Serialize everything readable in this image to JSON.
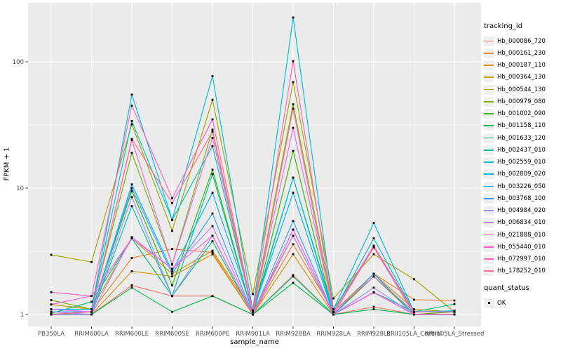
{
  "chart_data": {
    "type": "line",
    "title": "",
    "xlabel": "sample_name",
    "ylabel": "FPKM + 1",
    "y_scale": "log10",
    "y_ticks": [
      1,
      10,
      100
    ],
    "y_minor_ticks": [
      3.162,
      31.62
    ],
    "ylim": [
      0.93,
      290
    ],
    "grid": "on",
    "legend_position": "right",
    "point_marker": {
      "shape": "square",
      "color": "#000000",
      "size": 2.8
    },
    "categories": [
      "PB350LA",
      "RRIM600LA",
      "RRIM600LE",
      "RRIM600SE",
      "RRIM600PE",
      "RRIM901LA",
      "RRIM928BA",
      "RRIM928LA",
      "RRIM928LE",
      "RRII105LA_Control",
      "RRII105LA_Stressed"
    ],
    "series": [
      {
        "name": "Hb_000086_720",
        "color": "#F8766D",
        "values": [
          1.0,
          1.0,
          1.7,
          1.4,
          1.4,
          1.0,
          2.05,
          1.0,
          1.15,
          1.0,
          1.0
        ]
      },
      {
        "name": "Hb_000161_230",
        "color": "#EA8331",
        "values": [
          1.0,
          1.05,
          2.8,
          3.3,
          3.1,
          1.0,
          3.6,
          1.05,
          2.1,
          1.31,
          1.29
        ]
      },
      {
        "name": "Hb_000187_110",
        "color": "#D89000",
        "values": [
          1.0,
          1.0,
          2.2,
          2.0,
          3.0,
          1.0,
          3.0,
          1.0,
          2.0,
          1.05,
          1.05
        ]
      },
      {
        "name": "Hb_000364_130",
        "color": "#C09B00",
        "values": [
          1.2,
          1.1,
          4.0,
          2.1,
          3.2,
          1.05,
          4.2,
          1.0,
          2.1,
          1.1,
          1.05
        ]
      },
      {
        "name": "Hb_000544_130",
        "color": "#A3A500",
        "values": [
          2.97,
          2.6,
          32.0,
          4.6,
          50.0,
          1.45,
          69.0,
          1.34,
          3.0,
          1.9,
          1.05
        ]
      },
      {
        "name": "Hb_000979_080",
        "color": "#7CAE00",
        "values": [
          1.3,
          1.1,
          19.0,
          2.5,
          29.0,
          1.05,
          46.0,
          1.1,
          3.4,
          1.05,
          1.05
        ]
      },
      {
        "name": "Hb_001002_090",
        "color": "#39B600",
        "values": [
          1.0,
          1.05,
          9.5,
          1.7,
          14.0,
          1.0,
          19.7,
          1.0,
          2.0,
          1.0,
          1.05
        ]
      },
      {
        "name": "Hb_001158_110",
        "color": "#00BB4E",
        "values": [
          1.0,
          1.0,
          1.63,
          1.05,
          1.4,
          1.0,
          1.78,
          1.0,
          1.1,
          1.0,
          1.0
        ]
      },
      {
        "name": "Hb_001633_120",
        "color": "#00BF7D",
        "values": [
          1.02,
          1.26,
          4.0,
          1.4,
          3.8,
          1.0,
          2.0,
          1.0,
          1.5,
          1.05,
          1.21
        ]
      },
      {
        "name": "Hb_002437_010",
        "color": "#00C1A3",
        "values": [
          1.0,
          1.0,
          7.2,
          1.4,
          12.9,
          1.0,
          12.1,
          1.0,
          2.1,
          1.0,
          1.0
        ]
      },
      {
        "name": "Hb_002559_010",
        "color": "#00BFC4",
        "values": [
          1.1,
          1.1,
          34.0,
          5.6,
          21.5,
          1.05,
          12.1,
          1.05,
          4.0,
          1.05,
          1.07
        ]
      },
      {
        "name": "Hb_002809_020",
        "color": "#00BAE0",
        "values": [
          1.1,
          1.1,
          55.0,
          5.6,
          77.0,
          1.08,
          224.0,
          1.1,
          5.3,
          1.05,
          1.07
        ]
      },
      {
        "name": "Hb_003226_050",
        "color": "#00B0F6",
        "values": [
          1.05,
          1.05,
          10.7,
          2.2,
          9.2,
          1.05,
          9.2,
          1.0,
          3.5,
          1.0,
          1.0
        ]
      },
      {
        "name": "Hb_003768_100",
        "color": "#35A2FF",
        "values": [
          1.05,
          1.05,
          10.0,
          2.1,
          6.3,
          1.0,
          5.5,
          1.0,
          2.1,
          1.0,
          1.0
        ]
      },
      {
        "name": "Hb_004984_020",
        "color": "#9590FF",
        "values": [
          1.0,
          1.0,
          8.5,
          1.4,
          4.2,
          1.0,
          4.7,
          1.0,
          1.63,
          1.0,
          1.0
        ]
      },
      {
        "name": "Hb_006834_010",
        "color": "#C77CFF",
        "values": [
          1.05,
          1.0,
          4.1,
          2.3,
          5.0,
          1.0,
          4.2,
          1.0,
          1.5,
          1.0,
          1.0
        ]
      },
      {
        "name": "Hb_021888_010",
        "color": "#E76BF3",
        "values": [
          1.1,
          1.05,
          24.0,
          2.48,
          25.0,
          1.05,
          30.0,
          1.05,
          2.0,
          1.05,
          1.05
        ]
      },
      {
        "name": "Hb_055440_010",
        "color": "#FA62DB",
        "values": [
          1.2,
          1.4,
          4.0,
          2.3,
          4.2,
          1.0,
          4.7,
          1.0,
          1.49,
          1.0,
          1.0
        ]
      },
      {
        "name": "Hb_072997_010",
        "color": "#FF62BC",
        "values": [
          1.5,
          1.4,
          45.0,
          8.3,
          35.0,
          1.05,
          101.0,
          1.05,
          3.5,
          1.05,
          1.05
        ]
      },
      {
        "name": "Hb_178252_010",
        "color": "#FF6A98",
        "values": [
          1.0,
          1.05,
          24.5,
          7.6,
          28.0,
          1.0,
          42.5,
          1.0,
          3.4,
          1.0,
          1.0
        ]
      }
    ]
  },
  "legend_tracking": {
    "title": "tracking_id"
  },
  "legend_quant": {
    "title": "quant_status",
    "items": [
      {
        "label": "OK",
        "marker": "black-square"
      }
    ]
  },
  "panel": {
    "bg_color": "#EBEBEB",
    "grid_color": "#FFFFFF",
    "tick_color": "#333333",
    "axis_text_color": "#4D4D4D"
  }
}
